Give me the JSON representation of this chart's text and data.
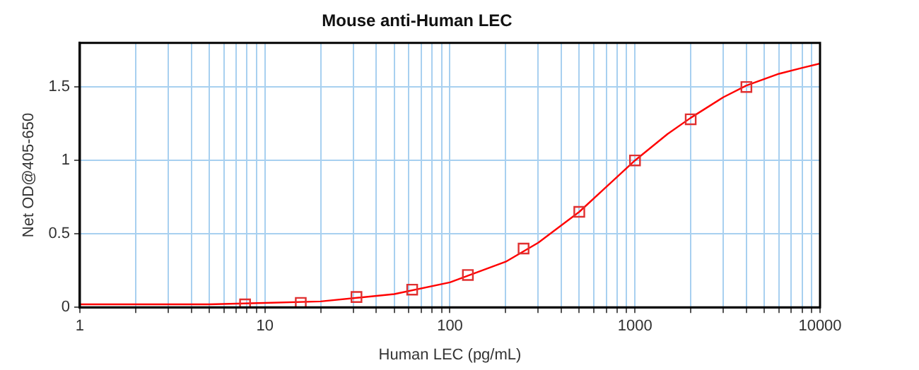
{
  "chart_data": {
    "type": "scatter",
    "title": "Mouse anti-Human LEC",
    "xlabel": "Human LEC (pg/mL)",
    "ylabel": "Net OD@405-650",
    "log": "x",
    "xlim": [
      1,
      10000
    ],
    "ylim": [
      0,
      1.8
    ],
    "xticks": [
      1,
      {
        "value": 2,
        "label": null
      },
      {
        "value": 3,
        "label": null
      },
      {
        "value": 4,
        "label": null
      },
      {
        "value": 5,
        "label": null
      },
      {
        "value": 6,
        "label": null
      },
      {
        "value": 7,
        "label": null
      },
      {
        "value": 8,
        "label": null
      },
      {
        "value": 9,
        "label": null
      },
      10,
      {
        "value": 20,
        "label": null
      },
      {
        "value": 30,
        "label": null
      },
      {
        "value": 40,
        "label": null
      },
      {
        "value": 50,
        "label": null
      },
      {
        "value": 60,
        "label": null
      },
      {
        "value": 70,
        "label": null
      },
      {
        "value": 80,
        "label": null
      },
      {
        "value": 90,
        "label": null
      },
      100,
      {
        "value": 200,
        "label": null
      },
      {
        "value": 300,
        "label": null
      },
      {
        "value": 400,
        "label": null
      },
      {
        "value": 500,
        "label": null
      },
      {
        "value": 600,
        "label": null
      },
      {
        "value": 700,
        "label": null
      },
      {
        "value": 800,
        "label": null
      },
      {
        "value": 900,
        "label": null
      },
      1000,
      {
        "value": 2000,
        "label": null
      },
      {
        "value": 3000,
        "label": null
      },
      {
        "value": 4000,
        "label": null
      },
      {
        "value": 5000,
        "label": null
      },
      {
        "value": 6000,
        "label": null
      },
      {
        "value": 7000,
        "label": null
      },
      {
        "value": 8000,
        "label": null
      },
      {
        "value": 9000,
        "label": null
      },
      10000
    ],
    "yticks": [
      0,
      0.5,
      1,
      1.5
    ],
    "grid": true,
    "series": [
      {
        "type": "line",
        "color": "#ff0000",
        "marker": "none",
        "x": [
          1,
          2,
          5,
          10,
          20,
          50,
          100,
          200,
          300,
          500,
          700,
          1000,
          1500,
          2000,
          3000,
          4000,
          6000,
          8000,
          10000
        ],
        "values": [
          0.02,
          0.02,
          0.02,
          0.03,
          0.04,
          0.09,
          0.17,
          0.31,
          0.44,
          0.65,
          0.82,
          1.0,
          1.18,
          1.29,
          1.43,
          1.51,
          1.59,
          1.63,
          1.66
        ]
      },
      {
        "type": "scatter",
        "color": "#e03030",
        "marker": "square",
        "x": [
          7.8125,
          15.625,
          31.25,
          62.5,
          125,
          250,
          500,
          1000,
          2000,
          4000
        ],
        "values": [
          0.02,
          0.03,
          0.07,
          0.12,
          0.22,
          0.4,
          0.65,
          1.0,
          1.28,
          1.5
        ]
      }
    ]
  }
}
